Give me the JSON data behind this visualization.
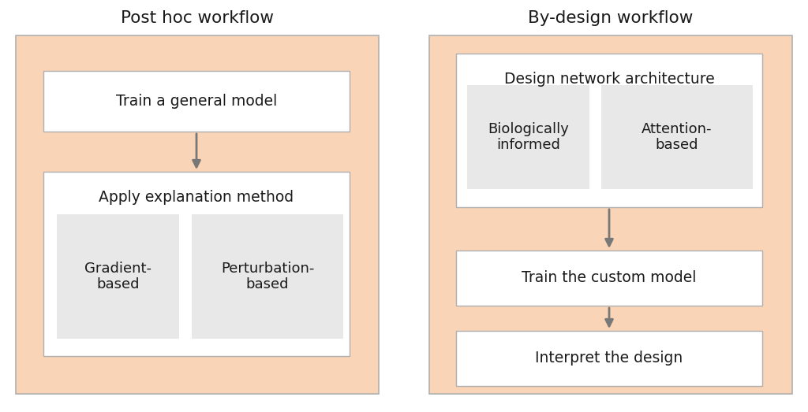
{
  "bg_color": "#ffffff",
  "panel_bg": "#f9d4b6",
  "box_white": "#ffffff",
  "box_gray": "#e8e8e8",
  "border_color": "#b0b0b0",
  "arrow_color": "#787878",
  "text_color": "#1a1a1a",
  "title_fontsize": 15.5,
  "label_fontsize": 13.5,
  "sublabel_fontsize": 13,
  "left_title": "Post hoc workflow",
  "right_title": "By-design workflow",
  "left_box1": "Train a general model",
  "left_box2_title": "Apply explanation method",
  "left_sub1": "Gradient-\nbased",
  "left_sub2": "Perturbation-\nbased",
  "right_box1_title": "Design network architecture",
  "right_sub1": "Biologically\ninformed",
  "right_sub2": "Attention-\nbased",
  "right_box2": "Train the custom model",
  "right_box3": "Interpret the design",
  "fig_w": 10.24,
  "fig_h": 5.23,
  "dpi": 100
}
